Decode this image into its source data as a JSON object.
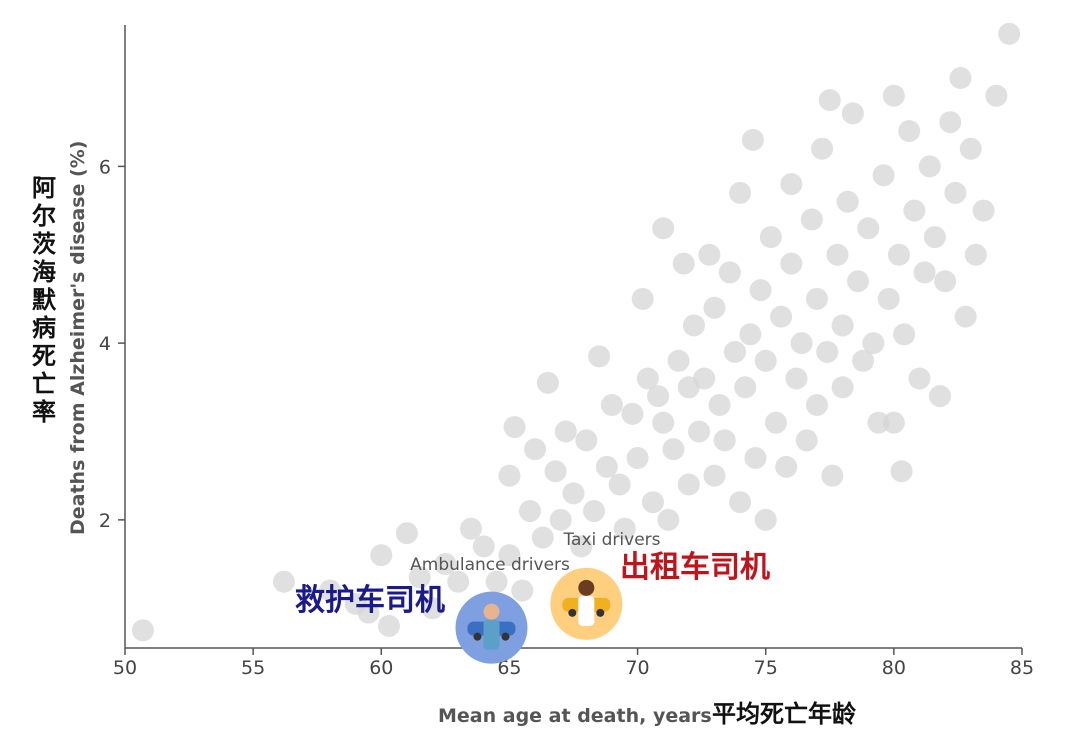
{
  "chart_data": {
    "type": "scatter",
    "xlabel": "Mean age at death, years",
    "xlabel_zh": "平均死亡年龄",
    "ylabel": "Deaths from Alzheimer's disease (%)",
    "ylabel_zh": [
      "阿",
      "尔",
      "茨",
      "海",
      "默",
      "病",
      "死",
      "亡",
      "率"
    ],
    "xlim": [
      50,
      85
    ],
    "ylim": [
      0.55,
      7.6
    ],
    "x_ticks": [
      "50",
      "55",
      "60",
      "65",
      "70",
      "75",
      "80",
      "85"
    ],
    "y_ticks": [
      "2",
      "4",
      "6"
    ],
    "grid": false,
    "point_color": "#d6d6d6",
    "points": [
      [
        50.7,
        0.75
      ],
      [
        56.2,
        1.3
      ],
      [
        58.0,
        1.2
      ],
      [
        59.0,
        1.05
      ],
      [
        59.5,
        0.95
      ],
      [
        60.0,
        1.6
      ],
      [
        60.3,
        0.8
      ],
      [
        61.0,
        1.85
      ],
      [
        61.5,
        1.35
      ],
      [
        62.0,
        1.0
      ],
      [
        62.5,
        1.5
      ],
      [
        63.0,
        1.3
      ],
      [
        63.5,
        1.9
      ],
      [
        64.0,
        1.7
      ],
      [
        64.5,
        1.3
      ],
      [
        65.0,
        1.6
      ],
      [
        65.0,
        2.5
      ],
      [
        65.2,
        3.05
      ],
      [
        65.5,
        1.2
      ],
      [
        65.8,
        2.1
      ],
      [
        66.0,
        2.8
      ],
      [
        66.3,
        1.8
      ],
      [
        66.5,
        3.55
      ],
      [
        66.8,
        2.55
      ],
      [
        67.0,
        2.0
      ],
      [
        67.2,
        3.0
      ],
      [
        67.5,
        2.3
      ],
      [
        67.8,
        1.7
      ],
      [
        68.0,
        2.9
      ],
      [
        68.3,
        2.1
      ],
      [
        68.5,
        3.85
      ],
      [
        68.8,
        2.6
      ],
      [
        69.0,
        3.3
      ],
      [
        69.3,
        2.4
      ],
      [
        69.5,
        1.9
      ],
      [
        69.8,
        3.2
      ],
      [
        70.0,
        2.7
      ],
      [
        70.2,
        4.5
      ],
      [
        70.4,
        3.6
      ],
      [
        70.6,
        2.2
      ],
      [
        70.8,
        3.4
      ],
      [
        71.0,
        3.1
      ],
      [
        71.0,
        5.3
      ],
      [
        71.2,
        2.0
      ],
      [
        71.4,
        2.8
      ],
      [
        71.6,
        3.8
      ],
      [
        71.8,
        4.9
      ],
      [
        72.0,
        3.5
      ],
      [
        72.0,
        2.4
      ],
      [
        72.2,
        4.2
      ],
      [
        72.4,
        3.0
      ],
      [
        72.6,
        3.6
      ],
      [
        72.8,
        5.0
      ],
      [
        73.0,
        2.5
      ],
      [
        73.0,
        4.4
      ],
      [
        73.2,
        3.3
      ],
      [
        73.4,
        2.9
      ],
      [
        73.6,
        4.8
      ],
      [
        73.8,
        3.9
      ],
      [
        74.0,
        2.2
      ],
      [
        74.0,
        5.7
      ],
      [
        74.2,
        3.5
      ],
      [
        74.4,
        4.1
      ],
      [
        74.5,
        6.3
      ],
      [
        74.6,
        2.7
      ],
      [
        74.8,
        4.6
      ],
      [
        75.0,
        3.8
      ],
      [
        75.0,
        2.0
      ],
      [
        75.2,
        5.2
      ],
      [
        75.4,
        3.1
      ],
      [
        75.6,
        4.3
      ],
      [
        75.8,
        2.6
      ],
      [
        76.0,
        4.9
      ],
      [
        76.0,
        5.8
      ],
      [
        76.2,
        3.6
      ],
      [
        76.4,
        4.0
      ],
      [
        76.6,
        2.9
      ],
      [
        76.8,
        5.4
      ],
      [
        77.0,
        3.3
      ],
      [
        77.0,
        4.5
      ],
      [
        77.2,
        6.2
      ],
      [
        77.4,
        3.9
      ],
      [
        77.5,
        6.75
      ],
      [
        77.6,
        2.5
      ],
      [
        77.8,
        5.0
      ],
      [
        78.0,
        4.2
      ],
      [
        78.0,
        3.5
      ],
      [
        78.2,
        5.6
      ],
      [
        78.4,
        6.6
      ],
      [
        78.6,
        4.7
      ],
      [
        78.8,
        3.8
      ],
      [
        79.0,
        5.3
      ],
      [
        79.2,
        4.0
      ],
      [
        79.4,
        3.1
      ],
      [
        79.6,
        5.9
      ],
      [
        79.8,
        4.5
      ],
      [
        80.0,
        6.8
      ],
      [
        80.0,
        3.1
      ],
      [
        80.2,
        5.0
      ],
      [
        80.3,
        2.55
      ],
      [
        80.4,
        4.1
      ],
      [
        80.6,
        6.4
      ],
      [
        80.8,
        5.5
      ],
      [
        81.0,
        3.6
      ],
      [
        81.2,
        4.8
      ],
      [
        81.4,
        6.0
      ],
      [
        81.6,
        5.2
      ],
      [
        81.8,
        3.4
      ],
      [
        82.0,
        4.7
      ],
      [
        82.2,
        6.5
      ],
      [
        82.4,
        5.7
      ],
      [
        82.6,
        7.0
      ],
      [
        82.8,
        4.3
      ],
      [
        83.0,
        6.2
      ],
      [
        83.2,
        5.0
      ],
      [
        83.5,
        5.5
      ],
      [
        84.0,
        6.8
      ],
      [
        84.5,
        7.5
      ]
    ],
    "highlights": [
      {
        "label": "Taxi drivers",
        "label_zh": "出租车司机",
        "x": 68.0,
        "y": 1.05,
        "color": "#ffcf80",
        "zh_color": "#c0141c"
      },
      {
        "label": "Ambulance drivers",
        "label_zh": "救护车司机",
        "x": 64.3,
        "y": 0.78,
        "color": "#7e9fe0",
        "zh_color": "#1a1a8c"
      }
    ]
  }
}
